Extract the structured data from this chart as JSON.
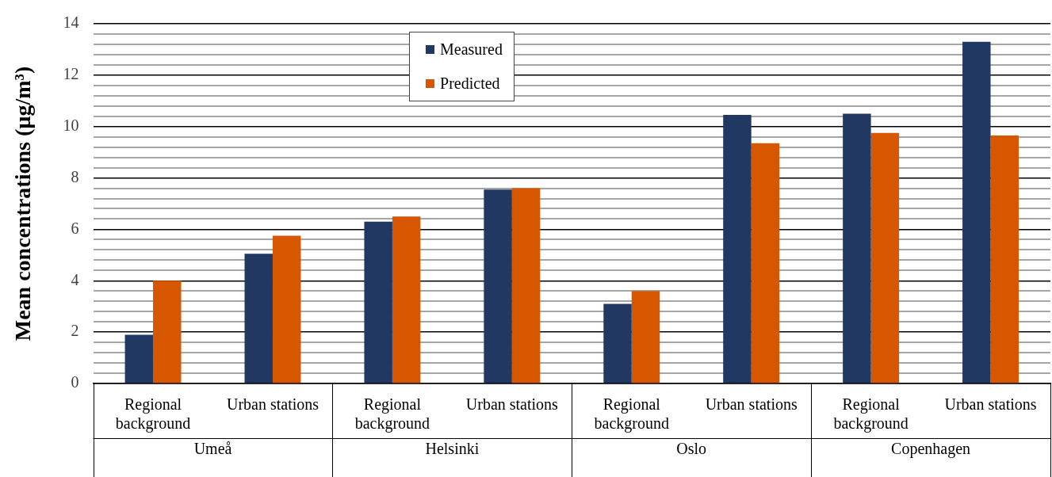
{
  "chart_data": {
    "type": "bar",
    "ylabel": "Mean concentrations (µg/m³)",
    "categories": [
      "Regional background",
      "Urban stations",
      "Regional background",
      "Urban stations",
      "Regional background",
      "Urban stations",
      "Regional background",
      "Urban stations"
    ],
    "annotations": [
      "Umeå",
      "Helsinki",
      "Oslo",
      "Copenhagen"
    ],
    "series": [
      {
        "name": "Measured",
        "color": "#213863",
        "values": [
          1.9,
          5.05,
          6.3,
          7.55,
          3.1,
          10.45,
          10.5,
          13.3
        ]
      },
      {
        "name": "Predicted",
        "color": "#d65700",
        "values": [
          4.0,
          5.75,
          6.5,
          7.6,
          3.6,
          9.35,
          9.75,
          9.65
        ]
      }
    ],
    "ylim": [
      0,
      14
    ],
    "yticks": [
      0,
      {
        "value": 0.4,
        "label": null
      },
      {
        "value": 0.8,
        "label": null
      },
      {
        "value": 1.2,
        "label": null
      },
      {
        "value": 1.6,
        "label": null
      },
      2,
      {
        "value": 2.4,
        "label": null
      },
      {
        "value": 2.8,
        "label": null
      },
      {
        "value": 3.2,
        "label": null
      },
      {
        "value": 3.6,
        "label": null
      },
      4,
      {
        "value": 4.4,
        "label": null
      },
      {
        "value": 4.8,
        "label": null
      },
      {
        "value": 5.2,
        "label": null
      },
      {
        "value": 5.6,
        "label": null
      },
      6,
      {
        "value": 6.4,
        "label": null
      },
      {
        "value": 6.8,
        "label": null
      },
      {
        "value": 7.2,
        "label": null
      },
      {
        "value": 7.6,
        "label": null
      },
      8,
      {
        "value": 8.4,
        "label": null
      },
      {
        "value": 8.8,
        "label": null
      },
      {
        "value": 9.2,
        "label": null
      },
      {
        "value": 9.6,
        "label": null
      },
      10,
      {
        "value": 10.4,
        "label": null
      },
      {
        "value": 10.8,
        "label": null
      },
      {
        "value": 11.2,
        "label": null
      },
      {
        "value": 11.6,
        "label": null
      },
      12,
      {
        "value": 12.4,
        "label": null
      },
      {
        "value": 12.8,
        "label": null
      },
      {
        "value": 13.2,
        "label": null
      },
      {
        "value": 13.6,
        "label": null
      },
      14
    ],
    "grid": "y",
    "legend": "top"
  }
}
